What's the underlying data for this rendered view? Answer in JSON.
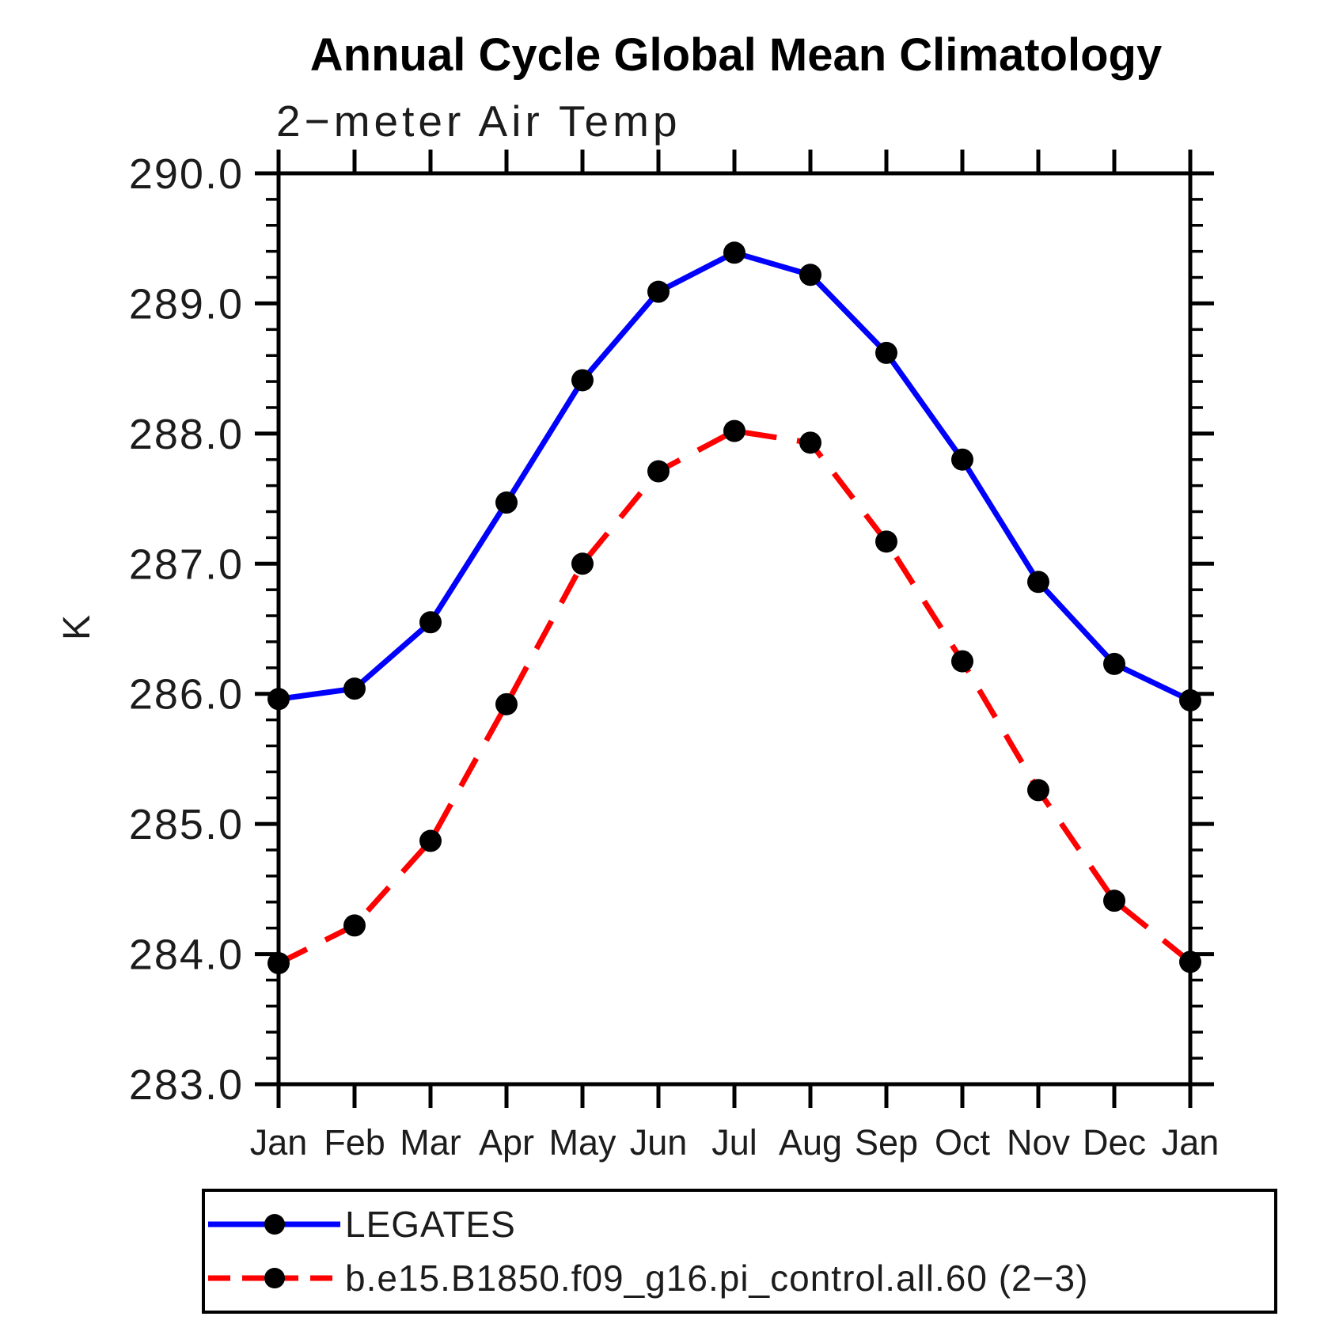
{
  "page": {
    "background": "#ffffff"
  },
  "chart_data": {
    "type": "line",
    "title": "Annual Cycle Global Mean Climatology",
    "subtitle": "2−meter Air Temp",
    "ylabel": "K",
    "categories": [
      "Jan",
      "Feb",
      "Mar",
      "Apr",
      "May",
      "Jun",
      "Jul",
      "Aug",
      "Sep",
      "Oct",
      "Nov",
      "Dec",
      "Jan"
    ],
    "y_axis": {
      "min": 283.0,
      "max": 290.0,
      "major_step": 1.0,
      "minor_step": 0.2,
      "tick_labels": [
        "290.0",
        "289.0",
        "288.0",
        "287.0",
        "286.0",
        "285.0",
        "284.0",
        "283.0"
      ]
    },
    "grid": false,
    "legend_position": "bottom",
    "axis_color": "#000000",
    "marker_color": "#000000",
    "series": [
      {
        "name": "LEGATES",
        "color": "#0000ff",
        "line_style": "solid",
        "marker": "filled-circle",
        "values": [
          285.96,
          286.04,
          286.55,
          287.47,
          288.41,
          289.09,
          289.39,
          289.22,
          288.62,
          287.8,
          286.86,
          286.23,
          285.95
        ]
      },
      {
        "name": "b.e15.B1850.f09_g16.pi_control.all.60 (2−3)",
        "color": "#ff0000",
        "line_style": "dashed",
        "marker": "filled-circle",
        "values": [
          283.93,
          284.22,
          284.87,
          285.92,
          287.0,
          287.71,
          288.02,
          287.93,
          287.17,
          286.25,
          285.26,
          284.41,
          283.94
        ]
      }
    ]
  }
}
